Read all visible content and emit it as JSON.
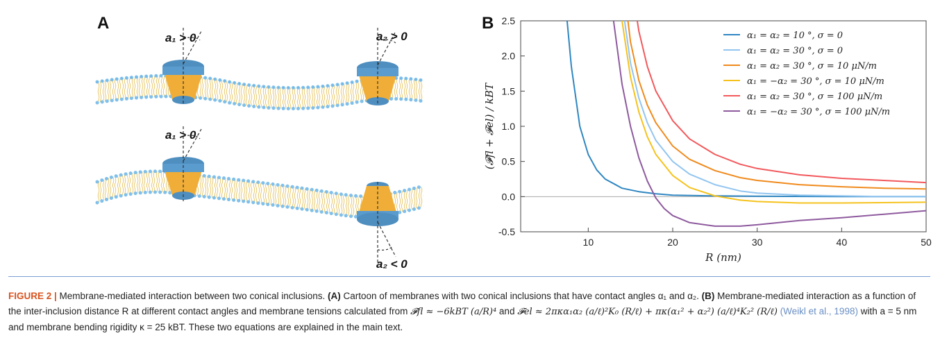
{
  "panel_a": {
    "letter": "A",
    "angle_labels": {
      "top_left": "a₁ > 0",
      "top_right": "a₂ > 0",
      "bottom_left": "a₁ > 0",
      "bottom_right": "a₂ < 0"
    }
  },
  "panel_b": {
    "letter": "B",
    "ylabel": "(𝓕fl + 𝓕el) / kBT",
    "xlabel": "R (nm)"
  },
  "chart_data": {
    "type": "line",
    "xlabel": "R (nm)",
    "ylabel": "(𝓕fl + 𝓕el) / kBT",
    "xlim": [
      2,
      50
    ],
    "ylim": [
      -0.5,
      2.5
    ],
    "xticks": [
      10,
      20,
      30,
      40,
      50
    ],
    "yticks": [
      -0.5,
      0.0,
      0.5,
      1.0,
      1.5,
      2.0,
      2.5
    ],
    "xtick_labels": [
      "10",
      "20",
      "30",
      "40",
      "50"
    ],
    "ytick_labels": [
      "-0.5",
      "0.0",
      "0.5",
      "1.0",
      "1.5",
      "2.0",
      "2.5"
    ],
    "legend_position": "top-right",
    "series": [
      {
        "name": "α₁ = α₂ = 10 °, σ = 0",
        "color": "#2e86c1",
        "x": [
          7.5,
          8,
          9,
          10,
          11,
          12,
          14,
          16,
          18,
          20,
          25,
          30,
          40,
          50
        ],
        "y": [
          2.5,
          1.85,
          1.0,
          0.6,
          0.38,
          0.25,
          0.12,
          0.07,
          0.04,
          0.02,
          0.01,
          0.005,
          0.0,
          0.0
        ]
      },
      {
        "name": "α₁ = α₂ = 30 °, σ = 0",
        "color": "#92c5f0",
        "x": [
          14.3,
          15,
          16,
          17,
          18,
          20,
          22,
          25,
          28,
          30,
          35,
          40,
          45,
          50
        ],
        "y": [
          2.5,
          1.9,
          1.4,
          1.05,
          0.8,
          0.5,
          0.32,
          0.17,
          0.08,
          0.05,
          0.02,
          0.01,
          0.0,
          0.0
        ]
      },
      {
        "name": "α₁ = α₂ = 30 °, σ = 10 μN/m",
        "color": "#f08a1c",
        "x": [
          14.7,
          15,
          16,
          17,
          18,
          20,
          22,
          25,
          28,
          30,
          35,
          40,
          45,
          50
        ],
        "y": [
          2.5,
          2.2,
          1.65,
          1.3,
          1.05,
          0.72,
          0.53,
          0.37,
          0.27,
          0.23,
          0.17,
          0.14,
          0.12,
          0.11
        ]
      },
      {
        "name": "α₁ = −α₂ = 30 °, σ = 10 μN/m",
        "color": "#f5c21c",
        "x": [
          14.0,
          15,
          16,
          17,
          18,
          20,
          22,
          25,
          28,
          30,
          35,
          40,
          50
        ],
        "y": [
          2.5,
          1.7,
          1.2,
          0.85,
          0.6,
          0.3,
          0.13,
          0.01,
          -0.05,
          -0.07,
          -0.09,
          -0.09,
          -0.08
        ]
      },
      {
        "name": "α₁ = α₂ = 30 °, σ = 100 μN/m",
        "color": "#f2585c",
        "x": [
          15.8,
          16,
          17,
          18,
          20,
          22,
          25,
          28,
          30,
          35,
          40,
          45,
          50
        ],
        "y": [
          2.5,
          2.35,
          1.85,
          1.5,
          1.08,
          0.82,
          0.6,
          0.46,
          0.4,
          0.31,
          0.26,
          0.23,
          0.2
        ]
      },
      {
        "name": "α₁ = −α₂ = 30 °, σ = 100 μN/m",
        "color": "#8e5a9e",
        "x": [
          13.0,
          14,
          15,
          16,
          17,
          18,
          19,
          20,
          22,
          25,
          28,
          30,
          35,
          40,
          45,
          50
        ],
        "y": [
          2.5,
          1.6,
          1.0,
          0.55,
          0.22,
          -0.02,
          -0.17,
          -0.27,
          -0.37,
          -0.42,
          -0.42,
          -0.4,
          -0.34,
          -0.3,
          -0.25,
          -0.2
        ]
      }
    ]
  },
  "caption": {
    "label": "FIGURE 2 |",
    "title": " Membrane-mediated interaction between two conical inclusions. ",
    "a_ref": "(A)",
    "a_text": " Cartoon of membranes with two conical inclusions that have contact angles α₁ and α₂. ",
    "b_ref": "(B)",
    "b_text": " Membrane-mediated interaction as a function of the inter-inclusion distance R at different contact angles and membrane tensions calculated from ",
    "eq1": "𝓕fl ≈ −6kBT (a/R)⁴",
    "and_text": " and ",
    "eq2": "𝓕el ≈ 2πκα₁α₂ (a/ℓ)²K₀ (R/ℓ) + πκ(α₁² + α₂²) (a/ℓ)⁴K₂² (R/ℓ)",
    "cite": " (Weikl et al., 1998)",
    "end_text": " with a = 5 nm and membrane bending rigidity κ = 25 kBT. These two equations are explained in the main text."
  }
}
